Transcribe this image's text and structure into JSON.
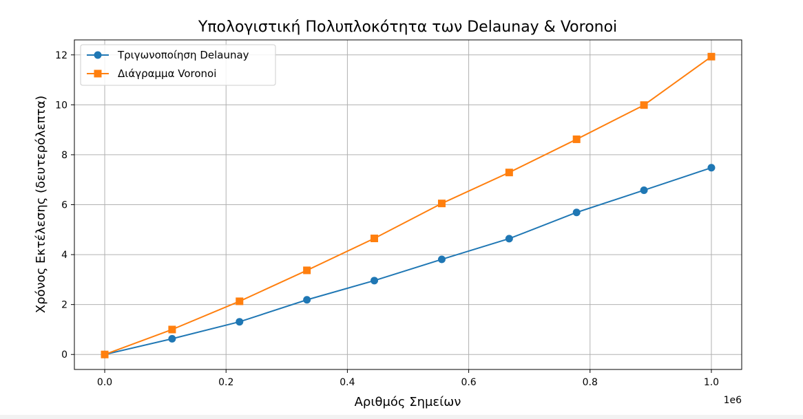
{
  "chart_data": {
    "type": "line",
    "title": "Υπολογιστική Πολυπλοκότητα των Delaunay & Voronoi",
    "xlabel": "Αριθμός Σημείων",
    "ylabel": "Χρόνος Εκτέλεσης (δευτερόλεπτα)",
    "x_offset_label": "1e6",
    "xlim": [
      -0.05,
      1.05
    ],
    "ylim": [
      -0.6,
      12.6
    ],
    "x_ticks": [
      0.0,
      0.2,
      0.4,
      0.6,
      0.8,
      1.0
    ],
    "x_tick_labels": [
      "0.0",
      "0.2",
      "0.4",
      "0.6",
      "0.8",
      "1.0"
    ],
    "y_ticks": [
      0,
      2,
      4,
      6,
      8,
      10,
      12
    ],
    "y_tick_labels": [
      "0",
      "2",
      "4",
      "6",
      "8",
      "10",
      "12"
    ],
    "grid": true,
    "legend_position": "top-left",
    "x": [
      0.0,
      0.1111,
      0.2222,
      0.3333,
      0.4444,
      0.5556,
      0.6667,
      0.7778,
      0.8889,
      1.0
    ],
    "series": [
      {
        "name": "Τριγωνοποίηση Delaunay",
        "marker": "circle",
        "color": "#1f77b4",
        "values": [
          0.0,
          0.63,
          1.31,
          2.19,
          2.96,
          3.81,
          4.64,
          5.69,
          6.58,
          7.48
        ]
      },
      {
        "name": "Διάγραμμα Voronoi",
        "marker": "square",
        "color": "#ff7f0e",
        "values": [
          0.0,
          1.0,
          2.13,
          3.37,
          4.65,
          6.05,
          7.29,
          8.62,
          9.99,
          11.93
        ]
      }
    ]
  }
}
